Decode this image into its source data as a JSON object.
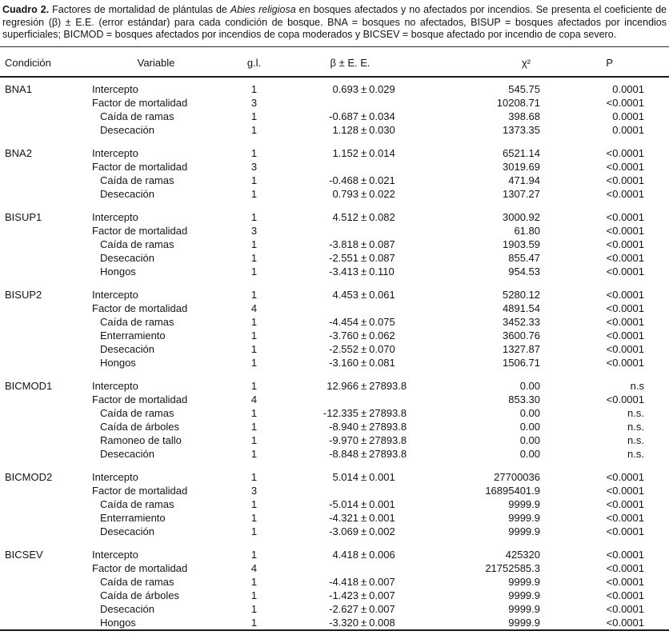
{
  "caption": {
    "label": "Cuadro 2.",
    "before_species": " Factores de mortalidad de plántulas de ",
    "species": "Abies religiosa",
    "after_species": " en bosques afectados y no afectados por incendios. Se presenta el coeficiente de regresión (β) ± E.E. (error estándar) para cada condición de bosque. BNA = bosques no afectados, BISUP = bosques afectados por incendios superficiales; BICMOD = bosques afectados por incendios de copa moderados y BICSEV = bosque afectado por incendio de copa severo."
  },
  "table": {
    "pm_sign": "±",
    "headers": [
      "Condición",
      "Variable",
      "g.l.",
      "β ± E. E.",
      "χ²",
      "P"
    ],
    "groups": [
      {
        "condition": "BNA1",
        "rows": [
          {
            "variable": "Intercepto",
            "indent": 0,
            "gl": "1",
            "beta": "0.693",
            "se": "0.029",
            "chi2": "545.75",
            "p": "0.0001"
          },
          {
            "variable": "Factor de mortalidad",
            "indent": 0,
            "gl": "3",
            "beta": "",
            "se": "",
            "chi2": "10208.71",
            "p": "<0.0001"
          },
          {
            "variable": "Caída de ramas",
            "indent": 1,
            "gl": "1",
            "beta": "-0.687",
            "se": "0.034",
            "chi2": "398.68",
            "p": "0.0001"
          },
          {
            "variable": "Desecación",
            "indent": 1,
            "gl": "1",
            "beta": "1.128",
            "se": "0.030",
            "chi2": "1373.35",
            "p": "0.0001"
          }
        ]
      },
      {
        "condition": "BNA2",
        "rows": [
          {
            "variable": "Intercepto",
            "indent": 0,
            "gl": "1",
            "beta": "1.152",
            "se": "0.014",
            "chi2": "6521.14",
            "p": "<0.0001"
          },
          {
            "variable": "Factor de mortalidad",
            "indent": 0,
            "gl": "3",
            "beta": "",
            "se": "",
            "chi2": "3019.69",
            "p": "<0.0001"
          },
          {
            "variable": "Caída de ramas",
            "indent": 1,
            "gl": "1",
            "beta": "-0.468",
            "se": "0.021",
            "chi2": "471.94",
            "p": "<0.0001"
          },
          {
            "variable": "Desecación",
            "indent": 1,
            "gl": "1",
            "beta": "0.793",
            "se": "0.022",
            "chi2": "1307.27",
            "p": "<0.0001"
          }
        ]
      },
      {
        "condition": "BISUP1",
        "rows": [
          {
            "variable": "Intercepto",
            "indent": 0,
            "gl": "1",
            "beta": "4.512",
            "se": "0.082",
            "chi2": "3000.92",
            "p": "<0.0001"
          },
          {
            "variable": "Factor de mortalidad",
            "indent": 0,
            "gl": "3",
            "beta": "",
            "se": "",
            "chi2": "61.80",
            "p": "<0.0001"
          },
          {
            "variable": "Caída de ramas",
            "indent": 1,
            "gl": "1",
            "beta": "-3.818",
            "se": "0.087",
            "chi2": "1903.59",
            "p": "<0.0001"
          },
          {
            "variable": "Desecación",
            "indent": 1,
            "gl": "1",
            "beta": "-2.551",
            "se": "0.087",
            "chi2": "855.47",
            "p": "<0.0001"
          },
          {
            "variable": "Hongos",
            "indent": 1,
            "gl": "1",
            "beta": "-3.413",
            "se": "0.110",
            "chi2": "954.53",
            "p": "<0.0001"
          }
        ]
      },
      {
        "condition": "BISUP2",
        "rows": [
          {
            "variable": "Intercepto",
            "indent": 0,
            "gl": "1",
            "beta": "4.453",
            "se": "0.061",
            "chi2": "5280.12",
            "p": "<0.0001"
          },
          {
            "variable": "Factor de mortalidad",
            "indent": 0,
            "gl": "4",
            "beta": "",
            "se": "",
            "chi2": "4891.54",
            "p": "<0.0001"
          },
          {
            "variable": "Caída de ramas",
            "indent": 1,
            "gl": "1",
            "beta": "-4.454",
            "se": "0.075",
            "chi2": "3452.33",
            "p": "<0.0001"
          },
          {
            "variable": "Enterramiento",
            "indent": 1,
            "gl": "1",
            "beta": "-3.760",
            "se": "0.062",
            "chi2": "3600.76",
            "p": "<0.0001"
          },
          {
            "variable": "Desecación",
            "indent": 1,
            "gl": "1",
            "beta": "-2.552",
            "se": "0.070",
            "chi2": "1327.87",
            "p": "<0.0001"
          },
          {
            "variable": "Hongos",
            "indent": 1,
            "gl": "1",
            "beta": "-3.160",
            "se": "0.081",
            "chi2": "1506.71",
            "p": "<0.0001"
          }
        ]
      },
      {
        "condition": "BICMOD1",
        "rows": [
          {
            "variable": "Intercepto",
            "indent": 0,
            "gl": "1",
            "beta": "12.966",
            "se": "27893.8",
            "chi2": "0.00",
            "p": "n.s"
          },
          {
            "variable": "Factor de mortalidad",
            "indent": 0,
            "gl": "4",
            "beta": "",
            "se": "",
            "chi2": "853.30",
            "p": "<0.0001"
          },
          {
            "variable": "Caída de ramas",
            "indent": 1,
            "gl": "1",
            "beta": "-12.335",
            "se": "27893.8",
            "chi2": "0.00",
            "p": "n.s."
          },
          {
            "variable": "Caída de árboles",
            "indent": 1,
            "gl": "1",
            "beta": "-8.940",
            "se": "27893.8",
            "chi2": "0.00",
            "p": "n.s."
          },
          {
            "variable": "Ramoneo de tallo",
            "indent": 1,
            "gl": "1",
            "beta": "-9.970",
            "se": "27893.8",
            "chi2": "0.00",
            "p": "n.s."
          },
          {
            "variable": "Desecación",
            "indent": 1,
            "gl": "1",
            "beta": "-8.848",
            "se": "27893.8",
            "chi2": "0.00",
            "p": "n.s."
          }
        ]
      },
      {
        "condition": "BICMOD2",
        "rows": [
          {
            "variable": "Intercepto",
            "indent": 0,
            "gl": "1",
            "beta": "5.014",
            "se": "0.001",
            "chi2": "27700036",
            "p": "<0.0001"
          },
          {
            "variable": "Factor de mortalidad",
            "indent": 0,
            "gl": "3",
            "beta": "",
            "se": "",
            "chi2": "16895401.9",
            "p": "<0.0001"
          },
          {
            "variable": "Caída de ramas",
            "indent": 1,
            "gl": "1",
            "beta": "-5.014",
            "se": "0.001",
            "chi2": "9999.9",
            "p": "<0.0001"
          },
          {
            "variable": "Enterramiento",
            "indent": 1,
            "gl": "1",
            "beta": "-4.321",
            "se": "0.001",
            "chi2": "9999.9",
            "p": "<0.0001"
          },
          {
            "variable": "Desecación",
            "indent": 1,
            "gl": "1",
            "beta": "-3.069",
            "se": "0.002",
            "chi2": "9999.9",
            "p": "<0.0001"
          }
        ]
      },
      {
        "condition": "BICSEV",
        "rows": [
          {
            "variable": "Intercepto",
            "indent": 0,
            "gl": "1",
            "beta": "4.418",
            "se": "0.006",
            "chi2": "425320",
            "p": "<0.0001"
          },
          {
            "variable": "Factor de mortalidad",
            "indent": 0,
            "gl": "4",
            "beta": "",
            "se": "",
            "chi2": "21752585.3",
            "p": "<0.0001"
          },
          {
            "variable": "Caída de ramas",
            "indent": 1,
            "gl": "1",
            "beta": "-4.418",
            "se": "0.007",
            "chi2": "9999.9",
            "p": "<0.0001"
          },
          {
            "variable": "Caída de árboles",
            "indent": 1,
            "gl": "1",
            "beta": "-1.423",
            "se": "0.007",
            "chi2": "9999.9",
            "p": "<0.0001"
          },
          {
            "variable": "Desecación",
            "indent": 1,
            "gl": "1",
            "beta": "-2.627",
            "se": "0.007",
            "chi2": "9999.9",
            "p": "<0.0001"
          },
          {
            "variable": "Hongos",
            "indent": 1,
            "gl": "1",
            "beta": "-3.320",
            "se": "0.008",
            "chi2": "9999.9",
            "p": "<0.0001"
          }
        ]
      }
    ]
  }
}
